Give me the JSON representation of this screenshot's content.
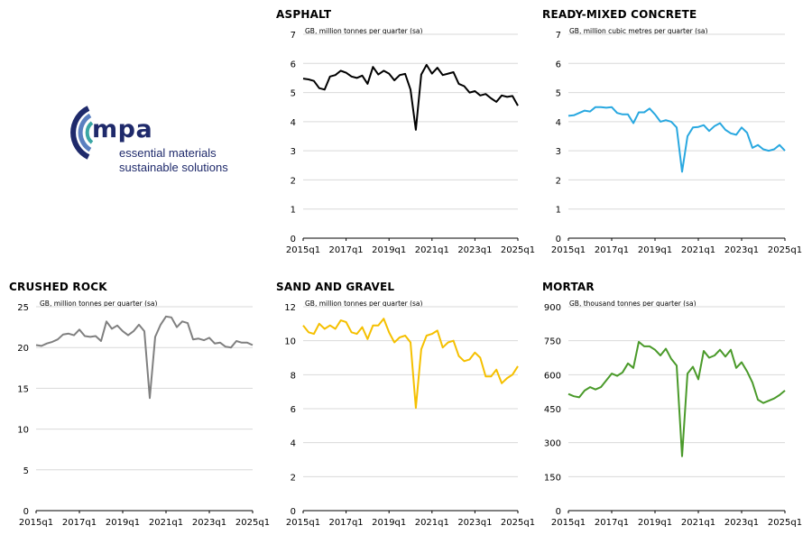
{
  "logo": {
    "name": "mpa",
    "tagline_1": "essential materials",
    "tagline_2": "sustainable solutions",
    "colors": {
      "navy": "#1f2a6b",
      "teal": "#3aa6a4",
      "blue": "#5a7fc0"
    }
  },
  "x_ticks": [
    "2015q1",
    "2017q1",
    "2019q1",
    "2021q1",
    "2023q1",
    "2025q1"
  ],
  "chart_data": [
    {
      "id": "asphalt",
      "type": "line",
      "title": "ASPHALT",
      "ylabel": "GB, million tonnes per quarter (sa)",
      "ylim": [
        0,
        7
      ],
      "yticks": [
        0,
        1,
        2,
        3,
        4,
        5,
        6,
        7
      ],
      "color": "#000000",
      "x_start": "2015q1",
      "x_end": "2025q1",
      "values": [
        5.48,
        5.45,
        5.4,
        5.15,
        5.1,
        5.55,
        5.6,
        5.75,
        5.68,
        5.55,
        5.5,
        5.58,
        5.3,
        5.88,
        5.62,
        5.75,
        5.65,
        5.42,
        5.6,
        5.64,
        5.1,
        3.72,
        5.62,
        5.95,
        5.65,
        5.85,
        5.6,
        5.65,
        5.7,
        5.3,
        5.22,
        5.0,
        5.05,
        4.9,
        4.95,
        4.8,
        4.68,
        4.9,
        4.85,
        4.88,
        4.55
      ]
    },
    {
      "id": "ready-mixed-concrete",
      "type": "line",
      "title": "READY-MIXED CONCRETE",
      "ylabel": "GB, million cubic metres per quarter (sa)",
      "ylim": [
        0,
        7
      ],
      "yticks": [
        0,
        1,
        2,
        3,
        4,
        5,
        6,
        7
      ],
      "color": "#29a8e0",
      "x_start": "2015q1",
      "x_end": "2025q1",
      "values": [
        4.2,
        4.22,
        4.3,
        4.38,
        4.35,
        4.5,
        4.5,
        4.48,
        4.5,
        4.3,
        4.25,
        4.25,
        3.95,
        4.32,
        4.32,
        4.45,
        4.25,
        4.0,
        4.05,
        4.0,
        3.8,
        2.28,
        3.5,
        3.8,
        3.82,
        3.88,
        3.68,
        3.85,
        3.95,
        3.72,
        3.6,
        3.55,
        3.8,
        3.62,
        3.1,
        3.2,
        3.05,
        3.0,
        3.05,
        3.2,
        3.0
      ]
    },
    {
      "id": "crushed-rock",
      "type": "line",
      "title": "CRUSHED ROCK",
      "ylabel": "GB, million tonnes per quarter (sa)",
      "ylim": [
        0,
        25
      ],
      "yticks": [
        0,
        5,
        10,
        15,
        20,
        25
      ],
      "color": "#808080",
      "x_start": "2015q1",
      "x_end": "2025q1",
      "values": [
        20.3,
        20.2,
        20.5,
        20.7,
        21.0,
        21.6,
        21.7,
        21.5,
        22.2,
        21.4,
        21.3,
        21.4,
        20.8,
        23.2,
        22.3,
        22.7,
        22.0,
        21.5,
        22.0,
        22.8,
        22.0,
        13.8,
        21.3,
        22.8,
        23.8,
        23.7,
        22.5,
        23.2,
        23.0,
        21.0,
        21.1,
        20.9,
        21.2,
        20.5,
        20.6,
        20.1,
        20.0,
        20.8,
        20.6,
        20.6,
        20.3
      ]
    },
    {
      "id": "sand-and-gravel",
      "type": "line",
      "title": "SAND AND GRAVEL",
      "ylabel": "GB, million tonnes per quarter (sa)",
      "ylim": [
        0,
        12
      ],
      "yticks": [
        0,
        2,
        4,
        6,
        8,
        10,
        12
      ],
      "color": "#f5c000",
      "x_start": "2015q1",
      "x_end": "2025q1",
      "values": [
        10.9,
        10.5,
        10.4,
        11.0,
        10.7,
        10.9,
        10.7,
        11.2,
        11.1,
        10.5,
        10.4,
        10.8,
        10.1,
        10.9,
        10.9,
        11.3,
        10.5,
        9.9,
        10.2,
        10.3,
        9.9,
        6.05,
        9.5,
        10.3,
        10.4,
        10.6,
        9.6,
        9.9,
        10.0,
        9.1,
        8.8,
        8.9,
        9.3,
        9.0,
        7.9,
        7.9,
        8.3,
        7.5,
        7.8,
        8.0,
        8.5
      ]
    },
    {
      "id": "mortar",
      "type": "line",
      "title": "MORTAR",
      "ylabel": "GB, thousand tonnes per quarter (sa)",
      "ylim": [
        0,
        900
      ],
      "yticks": [
        0,
        150,
        300,
        450,
        600,
        750,
        900
      ],
      "color": "#4a9a2a",
      "x_start": "2015q1",
      "x_end": "2025q1",
      "values": [
        515,
        505,
        500,
        530,
        545,
        535,
        545,
        575,
        605,
        595,
        610,
        650,
        630,
        745,
        725,
        725,
        710,
        685,
        715,
        670,
        640,
        240,
        605,
        635,
        580,
        705,
        675,
        685,
        710,
        680,
        710,
        630,
        655,
        615,
        565,
        490,
        475,
        485,
        495,
        510,
        530
      ]
    }
  ]
}
